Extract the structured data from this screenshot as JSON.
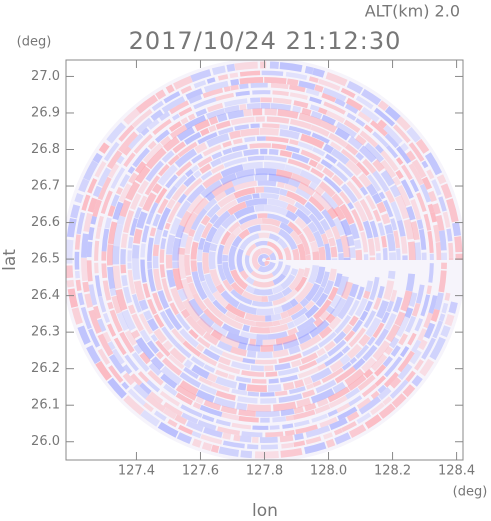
{
  "chart_data": {
    "type": "radar-image",
    "annotation": "ALT(km) 2.0",
    "title": "2017/10/24 21:12:30",
    "y_unit": "(deg)",
    "x_unit": "(deg)",
    "ylabel": "lat",
    "xlabel": "lon",
    "xlim": [
      127.18,
      128.42
    ],
    "ylim": [
      25.95,
      27.045
    ],
    "xticks": [
      127.4,
      127.6,
      127.8,
      {
        "value": 128,
        "label": "128.0"
      },
      128.2,
      128.4
    ],
    "yticks": [
      {
        "value": 26,
        "label": "26.0"
      },
      26.1,
      26.2,
      26.3,
      26.4,
      26.5,
      26.6,
      26.7,
      26.8,
      26.9,
      {
        "value": 27,
        "label": "27.0"
      }
    ]
  }
}
